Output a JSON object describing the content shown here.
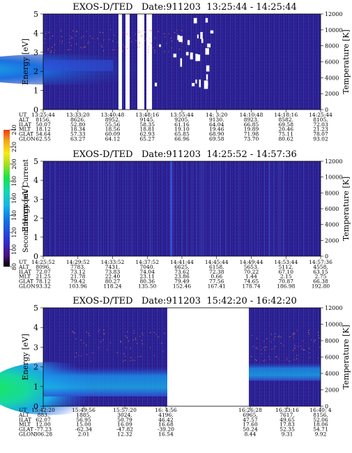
{
  "colors": {
    "background_dark": "#2a1f90",
    "speckle": "#3a46b8",
    "low_purple": "#1a0d7a",
    "blue": "#2f4fd8",
    "cyan": "#19a9e6",
    "green": "#17d86a",
    "white": "#ffffff"
  },
  "colorbar": {
    "label": "Second Harmonic Current",
    "ticks": [
      "80",
      "100",
      "120",
      "140",
      "160",
      "180",
      "200",
      "220",
      "240"
    ],
    "colors": [
      "#000000",
      "#6a1aa0",
      "#2c35d9",
      "#1178e8",
      "#12b7e5",
      "#12d9b0",
      "#18e24a",
      "#a6e11a",
      "#f5e915",
      "#f5a516",
      "#ee3a12"
    ]
  },
  "chart_data": [
    {
      "type": "heatmap",
      "title": "EXOS-D/TED   Date:911203  13:25:44 - 14:25:44",
      "ylabel": "Energy [eV]",
      "y2label": "Temperature [K]",
      "ylim": [
        0,
        5
      ],
      "y2lim": [
        0,
        12000
      ],
      "yticks": [
        "0",
        "1",
        "2",
        "3",
        "4",
        "5"
      ],
      "y2ticks": [
        "0",
        "2000",
        "4000",
        "6000",
        "8000",
        "10000",
        "12000"
      ],
      "row_labels": [
        "UT",
        "ALT",
        "ILAT",
        "MLT",
        "GLAT",
        "GLON"
      ],
      "columns": [
        [
          "13:25:44",
          "8156.",
          "50.07",
          "18.12",
          "54.64",
          "62.55"
        ],
        [
          "13:33:20",
          "8626.",
          "52.80",
          "18.34",
          "57.33",
          "63.27"
        ],
        [
          "13:40:48",
          "8952.",
          "55.56",
          "18.56",
          "60.09",
          "64.12"
        ],
        [
          "13:48:16",
          "9145.",
          "58.35",
          "18.81",
          "62.93",
          "65.27"
        ],
        [
          "13:55:44",
          "9205.",
          "61.16",
          "19.10",
          "65.85",
          "66.96"
        ],
        [
          "14: 3:20",
          "9130.",
          "64.04",
          "19.46",
          "68.90",
          "69.58"
        ],
        [
          "14:10:48",
          "8923.",
          "66.85",
          "19.89",
          "71.98",
          "73.70"
        ],
        [
          "14:18:16",
          "8582.",
          "69.58",
          "20.46",
          "75.11",
          "80.62"
        ],
        [
          "14:25:44",
          "8105.",
          "72.03",
          "21.23",
          "78.07",
          "93.02"
        ]
      ]
    },
    {
      "type": "heatmap",
      "title": "EXOS-D/TED   Date:911203  14:25:52 - 14:57:36",
      "ylabel": "Energy [eV]",
      "y2label": "Temperature [K]",
      "ylim": [
        0,
        5
      ],
      "y2lim": [
        0,
        12000
      ],
      "yticks": [
        "0",
        "1",
        "2",
        "3",
        "4",
        "5"
      ],
      "y2ticks": [
        "0",
        "2000",
        "4000",
        "6000",
        "8000",
        "10000",
        "12000"
      ],
      "row_labels": [
        "UT",
        "ALT",
        "ILAT",
        "MLT",
        "GLAT",
        "GLON"
      ],
      "columns": [
        [
          "14:25:52",
          "8096.",
          "72.07",
          "21.25",
          "78.12",
          "93.32"
        ],
        [
          "14:29:52",
          "7783.",
          "73.12",
          "21.78",
          "79.42",
          "103.96"
        ],
        [
          "14:33:52",
          "7431.",
          "73.83",
          "22.40",
          "80.27",
          "118.24"
        ],
        [
          "14:37:52",
          "7040.",
          "74.04",
          "23.11",
          "80.36",
          "135.50"
        ],
        [
          "14:41:44",
          "6625.",
          "73.62",
          "23.86",
          "79.49",
          "152.46"
        ],
        [
          "14:45:44",
          "6158.",
          "72.38",
          "0.66",
          "77.56",
          "167.41"
        ],
        [
          "14:49:44",
          "5653.",
          "70.22",
          "1.44",
          "74.65",
          "178.74"
        ],
        [
          "14:53:44",
          "5112.",
          "67.10",
          "2.15",
          "70.87",
          "186.98"
        ],
        [
          "14:57:36",
          "4558.",
          "63.15",
          "2.75",
          "66.38",
          "192.80"
        ]
      ]
    },
    {
      "type": "heatmap",
      "title": "EXOS-D/TED   Date:911203  15:42:20 - 16:42:20",
      "ylabel": "Energy [eV]",
      "y2label": "Temperature [K]",
      "ylim": [
        0,
        5
      ],
      "y2lim": [
        0,
        12000
      ],
      "yticks": [
        "0",
        "1",
        "2",
        "3",
        "4",
        "5"
      ],
      "y2ticks": [
        "0",
        "2000",
        "4000",
        "6000",
        "8000",
        "10000",
        "12000"
      ],
      "row_labels": [
        "UT",
        "ALT",
        "ILAT",
        "MLT",
        "GLAT",
        "GLON"
      ],
      "columns": [
        [
          "15:42:20",
          "883.",
          "62.07",
          "12.00",
          "-77.23",
          "306.28"
        ],
        [
          "15:49:56",
          "1885.",
          "56.95",
          "15.00",
          "-62.34",
          "2.01"
        ],
        [
          "15:57:20",
          "3024.",
          "50.79",
          "16.09",
          "-47.82",
          "12.32"
        ],
        [
          "16: 4:56",
          "4196.",
          "46.42",
          "16.68",
          "-39.20",
          "16.54"
        ],
        [
          "16:26:28",
          "6965.",
          "47.57",
          "17.60",
          "50.24",
          "8.44"
        ],
        [
          "16:33:16",
          "7617.",
          "49.65",
          "17.83",
          "52.35",
          "9.31"
        ],
        [
          "16:40: 4",
          "8156.",
          "52.06",
          "18.06",
          "54.71",
          "9.92"
        ]
      ]
    }
  ]
}
